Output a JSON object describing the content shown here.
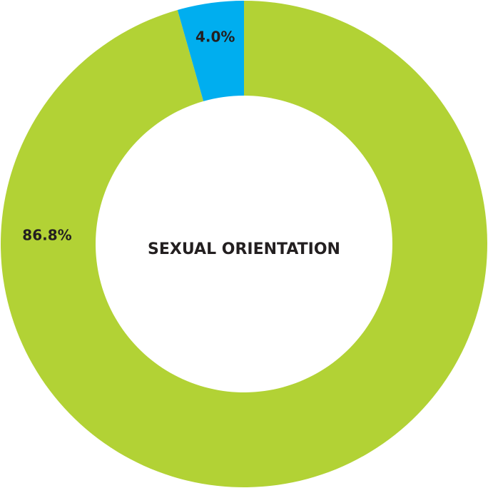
{
  "chart_data": {
    "type": "donut",
    "title": "SEXUAL ORIENTATION",
    "categories": [
      null,
      null
    ],
    "values": [
      86.8,
      4.0
    ],
    "value_labels": [
      "86.8%",
      "4.0%"
    ],
    "colors": [
      "#b2d235",
      "#00aeef"
    ]
  }
}
